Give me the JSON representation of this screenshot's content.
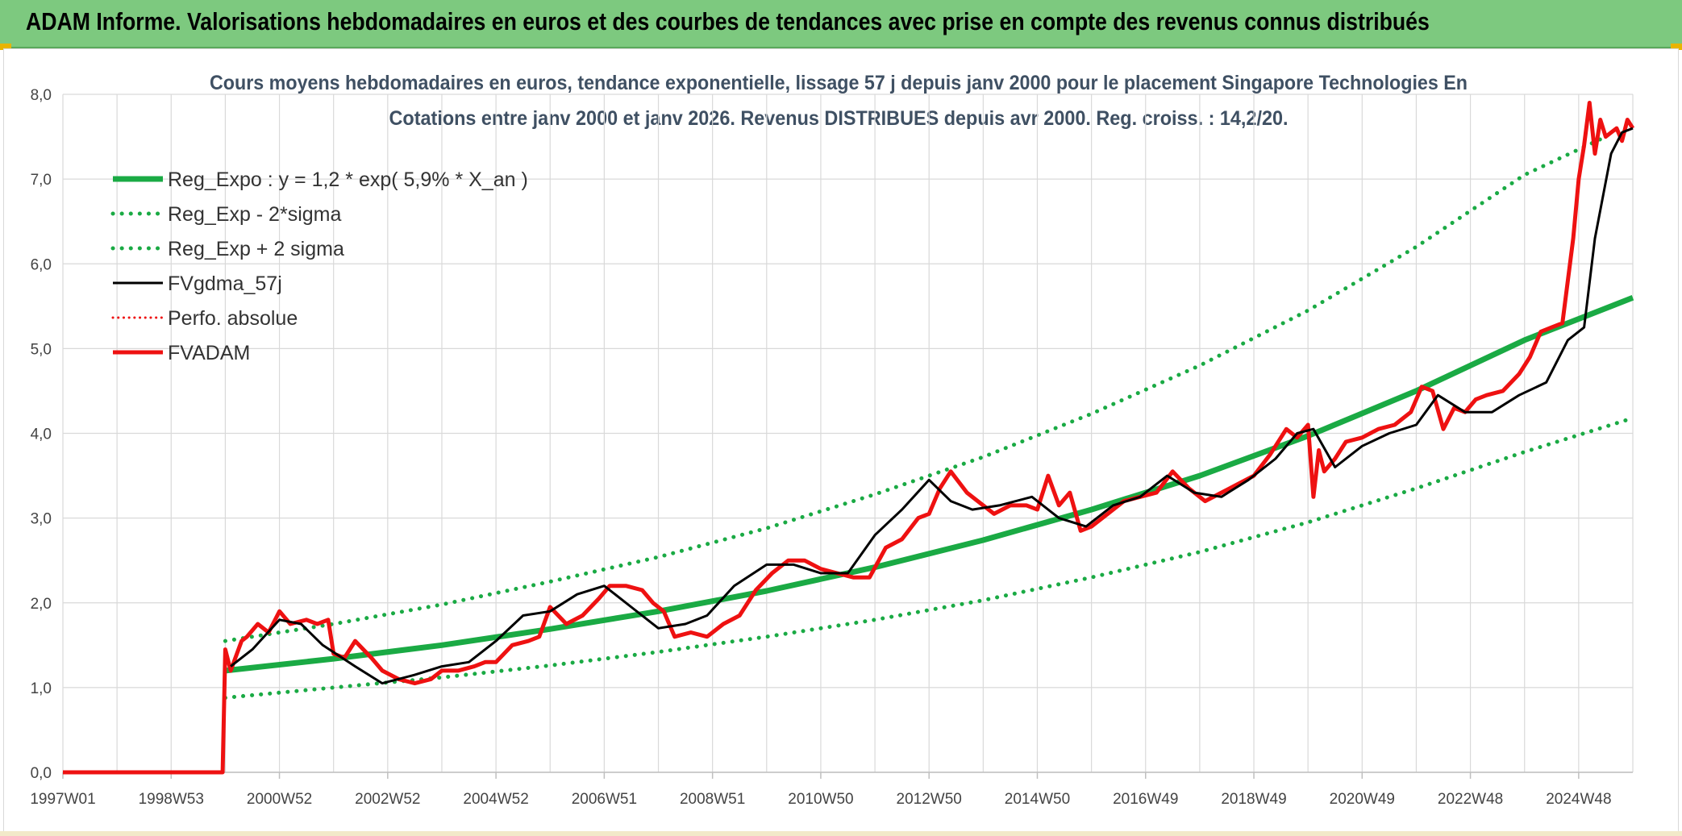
{
  "banner": {
    "title": "ADAM Informe. Valorisations hebdomadaires en euros et des courbes de tendances avec prise en compte des revenus connus distribués"
  },
  "colors": {
    "banner_bg": "#7dc97f",
    "green": "#1aaa44",
    "red": "#ee1111",
    "black": "#000000",
    "grid": "#d9d9d9"
  },
  "chart_data": {
    "type": "line",
    "title_line1": "Cours moyens hebdomadaires en euros, tendance exponentielle, lissage 57 j depuis janv 2000 pour le placement Singapore Technologies En",
    "title_line2": "Cotations entre janv 2000 et janv 2026. Revenus DISTRIBUES depuis avr 2000. Reg. croiss. : 14,2/20.",
    "xlabel": "",
    "ylabel": "",
    "xlim": [
      1997.0,
      2026.0
    ],
    "ylim": [
      0,
      8
    ],
    "y_ticks": [
      "0,0",
      "1,0",
      "2,0",
      "3,0",
      "4,0",
      "5,0",
      "6,0",
      "7,0",
      "8,0"
    ],
    "x_ticks": [
      {
        "label": "1997W01",
        "x": 1997.0
      },
      {
        "label": "1998W53",
        "x": 1999.0
      },
      {
        "label": "2000W52",
        "x": 2001.0
      },
      {
        "label": "2002W52",
        "x": 2003.0
      },
      {
        "label": "2004W52",
        "x": 2005.0
      },
      {
        "label": "2006W51",
        "x": 2007.0
      },
      {
        "label": "2008W51",
        "x": 2009.0
      },
      {
        "label": "2010W50",
        "x": 2011.0
      },
      {
        "label": "2012W50",
        "x": 2013.0
      },
      {
        "label": "2014W50",
        "x": 2015.0
      },
      {
        "label": "2016W49",
        "x": 2017.0
      },
      {
        "label": "2018W49",
        "x": 2019.0
      },
      {
        "label": "2020W49",
        "x": 2021.0
      },
      {
        "label": "2022W48",
        "x": 2023.0
      },
      {
        "label": "2024W48",
        "x": 2025.0
      }
    ],
    "grid": true,
    "legend_position": "top-left",
    "series": [
      {
        "name": "Reg_Expo : y = 1,2 * exp( 5,9% *  X_an )",
        "style": "solid",
        "color": "#1aaa44",
        "width": 7,
        "x": [
          2000.0,
          2002.0,
          2004.0,
          2006.0,
          2008.0,
          2010.0,
          2012.0,
          2014.0,
          2016.0,
          2018.0,
          2020.0,
          2022.0,
          2024.0,
          2026.0
        ],
        "y": [
          1.2,
          1.34,
          1.5,
          1.69,
          1.9,
          2.14,
          2.42,
          2.74,
          3.1,
          3.5,
          3.97,
          4.5,
          5.1,
          5.6
        ]
      },
      {
        "name": "Reg_Exp - 2*sigma",
        "style": "dotted",
        "color": "#1aaa44",
        "width": 5,
        "x": [
          2000.0,
          2002.0,
          2004.0,
          2006.0,
          2008.0,
          2010.0,
          2012.0,
          2014.0,
          2016.0,
          2018.0,
          2020.0,
          2022.0,
          2024.0,
          2026.0
        ],
        "y": [
          0.88,
          1.0,
          1.12,
          1.26,
          1.42,
          1.6,
          1.8,
          2.03,
          2.3,
          2.6,
          2.95,
          3.35,
          3.78,
          4.18
        ]
      },
      {
        "name": "Reg_Exp + 2 sigma",
        "style": "dotted",
        "color": "#1aaa44",
        "width": 5,
        "x": [
          2000.0,
          2002.0,
          2004.0,
          2006.0,
          2008.0,
          2010.0,
          2012.0,
          2014.0,
          2016.0,
          2018.0,
          2020.0,
          2022.0,
          2024.0,
          2025.5
        ],
        "y": [
          1.55,
          1.75,
          1.98,
          2.25,
          2.54,
          2.88,
          3.28,
          3.72,
          4.23,
          4.8,
          5.45,
          6.2,
          7.05,
          7.5
        ]
      },
      {
        "name": "FVgdma_57j",
        "style": "solid",
        "color": "#000000",
        "width": 3,
        "x": [
          2000.1,
          2000.5,
          2001.0,
          2001.4,
          2001.8,
          2002.4,
          2002.9,
          2003.5,
          2004.0,
          2004.5,
          2005.0,
          2005.5,
          2006.0,
          2006.5,
          2007.0,
          2007.5,
          2008.0,
          2008.5,
          2008.9,
          2009.4,
          2010.0,
          2010.5,
          2011.0,
          2011.5,
          2012.0,
          2012.5,
          2013.0,
          2013.4,
          2013.8,
          2014.3,
          2014.9,
          2015.4,
          2015.9,
          2016.4,
          2016.9,
          2017.4,
          2017.9,
          2018.4,
          2018.9,
          2019.4,
          2019.8,
          2020.1,
          2020.5,
          2021.0,
          2021.5,
          2022.0,
          2022.4,
          2022.9,
          2023.4,
          2023.9,
          2024.4,
          2024.8,
          2025.1,
          2025.3,
          2025.6,
          2025.8,
          2026.0
        ],
        "y": [
          1.25,
          1.45,
          1.8,
          1.75,
          1.5,
          1.25,
          1.05,
          1.15,
          1.25,
          1.3,
          1.55,
          1.85,
          1.9,
          2.1,
          2.2,
          1.95,
          1.7,
          1.75,
          1.85,
          2.2,
          2.45,
          2.45,
          2.35,
          2.35,
          2.8,
          3.1,
          3.45,
          3.2,
          3.1,
          3.15,
          3.25,
          3.0,
          2.9,
          3.15,
          3.25,
          3.5,
          3.3,
          3.25,
          3.45,
          3.7,
          4.0,
          4.05,
          3.6,
          3.85,
          4.0,
          4.1,
          4.45,
          4.25,
          4.25,
          4.45,
          4.6,
          5.1,
          5.25,
          6.3,
          7.3,
          7.55,
          7.6
        ]
      },
      {
        "name": "Perfo. absolue",
        "style": "dotted",
        "color": "#ee1111",
        "width": 3,
        "x": [],
        "y": []
      },
      {
        "name": "FVADAM",
        "style": "solid",
        "color": "#ee1111",
        "width": 5,
        "x": [
          1997.0,
          1999.95,
          2000.0,
          2000.1,
          2000.3,
          2000.4,
          2000.6,
          2000.8,
          2001.0,
          2001.2,
          2001.5,
          2001.7,
          2001.9,
          2002.0,
          2002.2,
          2002.4,
          2002.7,
          2002.9,
          2003.2,
          2003.5,
          2003.8,
          2004.0,
          2004.3,
          2004.6,
          2004.8,
          2005.0,
          2005.3,
          2005.6,
          2005.8,
          2006.0,
          2006.3,
          2006.6,
          2006.9,
          2007.1,
          2007.4,
          2007.7,
          2007.9,
          2008.1,
          2008.3,
          2008.6,
          2008.9,
          2009.2,
          2009.5,
          2009.8,
          2010.1,
          2010.4,
          2010.7,
          2011.0,
          2011.3,
          2011.6,
          2011.9,
          2012.2,
          2012.5,
          2012.8,
          2013.0,
          2013.2,
          2013.4,
          2013.7,
          2013.9,
          2014.2,
          2014.5,
          2014.8,
          2015.0,
          2015.2,
          2015.4,
          2015.6,
          2015.8,
          2016.0,
          2016.3,
          2016.6,
          2016.9,
          2017.2,
          2017.5,
          2017.8,
          2018.1,
          2018.4,
          2018.7,
          2019.0,
          2019.3,
          2019.6,
          2019.8,
          2020.0,
          2020.1,
          2020.2,
          2020.3,
          2020.5,
          2020.7,
          2021.0,
          2021.3,
          2021.6,
          2021.9,
          2022.1,
          2022.3,
          2022.5,
          2022.7,
          2022.9,
          2023.1,
          2023.3,
          2023.6,
          2023.9,
          2024.1,
          2024.3,
          2024.5,
          2024.7,
          2024.9,
          2025.0,
          2025.1,
          2025.2,
          2025.3,
          2025.4,
          2025.5,
          2025.6,
          2025.7,
          2025.8,
          2025.9,
          2026.0
        ],
        "y": [
          0.0,
          0.0,
          1.45,
          1.2,
          1.55,
          1.6,
          1.75,
          1.65,
          1.9,
          1.75,
          1.8,
          1.75,
          1.8,
          1.4,
          1.35,
          1.55,
          1.35,
          1.2,
          1.1,
          1.05,
          1.1,
          1.2,
          1.2,
          1.25,
          1.3,
          1.3,
          1.5,
          1.55,
          1.6,
          1.95,
          1.75,
          1.85,
          2.05,
          2.2,
          2.2,
          2.15,
          2.0,
          1.9,
          1.6,
          1.65,
          1.6,
          1.75,
          1.85,
          2.15,
          2.35,
          2.5,
          2.5,
          2.4,
          2.35,
          2.3,
          2.3,
          2.65,
          2.75,
          3.0,
          3.05,
          3.35,
          3.55,
          3.3,
          3.2,
          3.05,
          3.15,
          3.15,
          3.1,
          3.5,
          3.15,
          3.3,
          2.85,
          2.9,
          3.05,
          3.2,
          3.25,
          3.3,
          3.55,
          3.35,
          3.2,
          3.3,
          3.4,
          3.5,
          3.75,
          4.05,
          3.95,
          4.1,
          3.25,
          3.8,
          3.55,
          3.7,
          3.9,
          3.95,
          4.05,
          4.1,
          4.25,
          4.55,
          4.5,
          4.05,
          4.3,
          4.25,
          4.4,
          4.45,
          4.5,
          4.7,
          4.9,
          5.2,
          5.25,
          5.3,
          6.3,
          7.0,
          7.4,
          7.9,
          7.3,
          7.7,
          7.5,
          7.55,
          7.6,
          7.45,
          7.7,
          7.6
        ]
      }
    ]
  }
}
